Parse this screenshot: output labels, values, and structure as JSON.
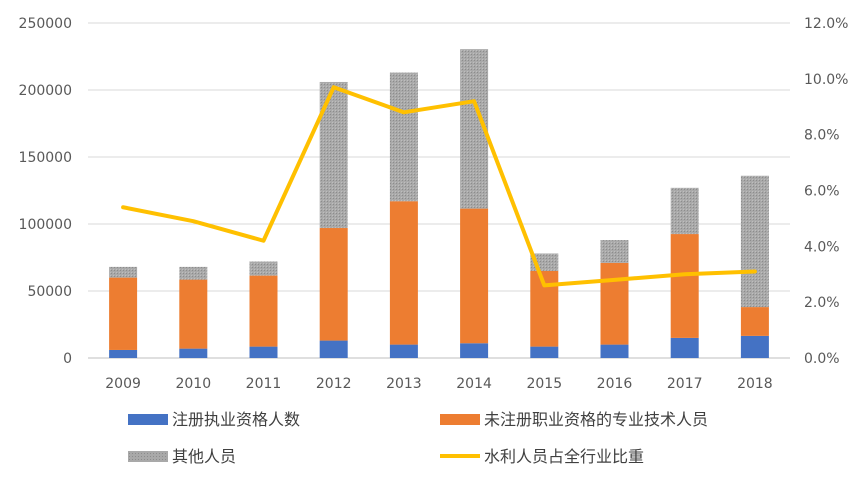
{
  "chart_data": {
    "type": "bar",
    "stacked": true,
    "categories": [
      "2009",
      "2010",
      "2011",
      "2012",
      "2013",
      "2014",
      "2015",
      "2016",
      "2017",
      "2018"
    ],
    "series": [
      {
        "name": "注册执业资格人数",
        "type": "bar",
        "axis": "left",
        "color": "#4472C4",
        "values": [
          6000,
          7000,
          8500,
          13000,
          10000,
          11000,
          8500,
          10000,
          15000,
          16500
        ]
      },
      {
        "name": "未注册职业资格的专业技术人员",
        "type": "bar",
        "axis": "left",
        "color": "#ED7D31",
        "values": [
          54000,
          51500,
          53000,
          84000,
          107000,
          100500,
          56500,
          61000,
          77500,
          21500
        ]
      },
      {
        "name": "其他人员",
        "type": "bar",
        "axis": "left",
        "color": "#A5A5A5",
        "values": [
          8000,
          9500,
          10500,
          109000,
          96000,
          119000,
          13000,
          17000,
          34500,
          98000
        ]
      },
      {
        "name": "水利人员占全行业比重",
        "type": "line",
        "axis": "right",
        "color": "#FFC000",
        "values": [
          5.4,
          4.9,
          4.2,
          9.7,
          8.8,
          9.2,
          2.6,
          2.8,
          3.0,
          3.1
        ]
      }
    ],
    "y_left": {
      "min": 0,
      "max": 250000,
      "ticks": [
        "0",
        "50000",
        "100000",
        "150000",
        "200000",
        "250000"
      ]
    },
    "y_right": {
      "min": 0,
      "max": 12,
      "ticks": [
        "0.0%",
        "2.0%",
        "4.0%",
        "6.0%",
        "8.0%",
        "10.0%",
        "12.0%"
      ]
    },
    "grid": true,
    "legend_position": "bottom"
  }
}
